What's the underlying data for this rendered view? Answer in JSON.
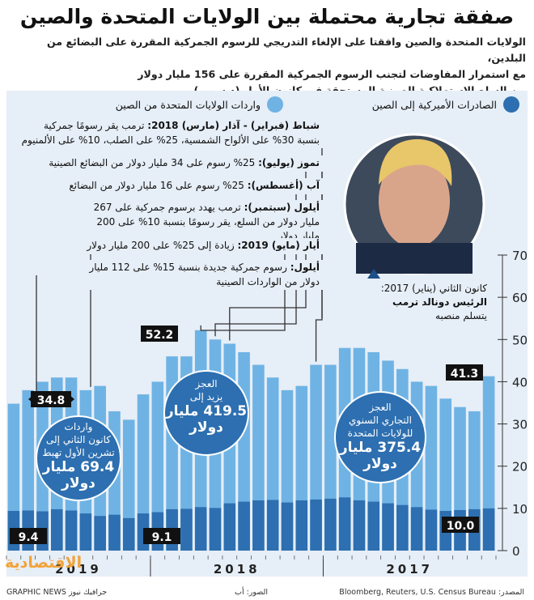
{
  "title": "صفقة تجارية محتملة بين الولايات المتحدة والصين",
  "subtitle_lines": [
    "الولايات المتحدة والصين وافقتا على الإلغاء التدريجي للرسوم الجمركية المقررة على البضائع من البلدين،",
    "مع استمرار المفاوضات لتجنب الرسوم الجمركية المقررة على 156 مليار دولار",
    "من السلع الاستهلاكية الصينية المستحقة في كانون الأول (ديسمبر)"
  ],
  "legend": {
    "exports_label": "الصادرات الأميركية إلى الصين",
    "imports_label": "واردات الولايات المتحدة من الصين"
  },
  "colors": {
    "imports": "#6fb3e4",
    "exports": "#2d6fb0",
    "bg": "#e6eef7",
    "label_box": "#111111"
  },
  "notes": [
    {
      "head": "شباط (فبراير) - آذار (مارس) 2018:",
      "text": "ترمب يقر رسومًا جمركية بنسبة 30% على الألواح الشمسية، 25% على الصلب، 10% على الألمنيوم"
    },
    {
      "head": "تموز (يوليو):",
      "text": "25% رسوم على 34 مليار دولار من البضائع الصينية"
    },
    {
      "head": "آب (أغسطس):",
      "text": "25% رسوم على 16 مليار دولار من البضائع"
    },
    {
      "head": "أيلول (سبتمبر):",
      "text": "ترمب يهدد برسوم جمركية على 267 مليار دولار من السلع، يقر رسومًا بنسبة 10% على 200 مليار دولار"
    },
    {
      "head": "أيار (مايو) 2019:",
      "text": "زيادة إلى 25% على 200 مليار دولار"
    },
    {
      "head": "أيلول:",
      "text": "رسوم جمركية جديدة بنسبة 15% على 112 مليار دولار من الواردات الصينية"
    }
  ],
  "president_caption": {
    "date": "كانون الثاني (يناير) 2017:",
    "line1": "الرئيس دونالد ترمب",
    "line2": "يتسلم منصبه"
  },
  "circles": [
    {
      "line1": "واردات",
      "line2": "كانون الثاني إلى",
      "line3": "تشرين الأول تهبط",
      "big1": "69.4 مليار",
      "big2": "دولار"
    },
    {
      "line1": "العجز",
      "line2": "يزيد إلى",
      "big1": "419.5 مليار",
      "big2": "دولار"
    },
    {
      "line1": "العجز",
      "line2": "التجاري السنوي",
      "line3": "للولايات المتحدة",
      "big1": "375.4 مليار",
      "big2": "دولار"
    }
  ],
  "chart_data": {
    "type": "bar",
    "x_axis_order": "right-to-left (Jan 2017 at right, Oct 2019 at left)",
    "year_labels": [
      "2017",
      "2018",
      "2019"
    ],
    "y_ticks": [
      0,
      10,
      20,
      30,
      40,
      50,
      60,
      70
    ],
    "ylim": [
      0,
      70
    ],
    "months_ltr": [
      "2019-10",
      "2019-09",
      "2019-08",
      "2019-07",
      "2019-06",
      "2019-05",
      "2019-04",
      "2019-03",
      "2019-02",
      "2019-01",
      "2018-12",
      "2018-11",
      "2018-10",
      "2018-09",
      "2018-08",
      "2018-07",
      "2018-06",
      "2018-05",
      "2018-04",
      "2018-03",
      "2018-02",
      "2018-01",
      "2017-12",
      "2017-11",
      "2017-10",
      "2017-09",
      "2017-08",
      "2017-07",
      "2017-06",
      "2017-05",
      "2017-04",
      "2017-03",
      "2017-02",
      "2017-01"
    ],
    "series": [
      {
        "name": "واردات الولايات المتحدة من الصين",
        "values": [
          34.8,
          38,
          40,
          41,
          41,
          38,
          39,
          33,
          31,
          37,
          40,
          46,
          46,
          52.2,
          50,
          49,
          47,
          44,
          41,
          38,
          39,
          44,
          44,
          48,
          48,
          47,
          45,
          43,
          40,
          39,
          36,
          34,
          33,
          41.3
        ]
      },
      {
        "name": "الصادرات الأميركية إلى الصين",
        "values": [
          9.4,
          9.5,
          9.3,
          9.8,
          9.5,
          8.8,
          8.2,
          8.5,
          7.7,
          8.8,
          9.1,
          9.8,
          9.9,
          10.3,
          10.1,
          11.2,
          11.6,
          11.9,
          12.0,
          11.4,
          11.9,
          12.1,
          12.3,
          12.6,
          11.9,
          11.6,
          11.2,
          10.8,
          10.3,
          9.7,
          9.4,
          9.6,
          9.8,
          10.0
        ]
      }
    ],
    "value_labels": [
      "34.8",
      "9.4",
      "52.2",
      "9.1",
      "41.3",
      "10.0"
    ]
  },
  "footer": {
    "source": "المصدر: Bloomberg, Reuters, U.S. Census Bureau",
    "photo": "الصور: أب",
    "credit": "GRAPHIC NEWS جرافيك نيوز"
  },
  "brand": "الاقتصادية"
}
